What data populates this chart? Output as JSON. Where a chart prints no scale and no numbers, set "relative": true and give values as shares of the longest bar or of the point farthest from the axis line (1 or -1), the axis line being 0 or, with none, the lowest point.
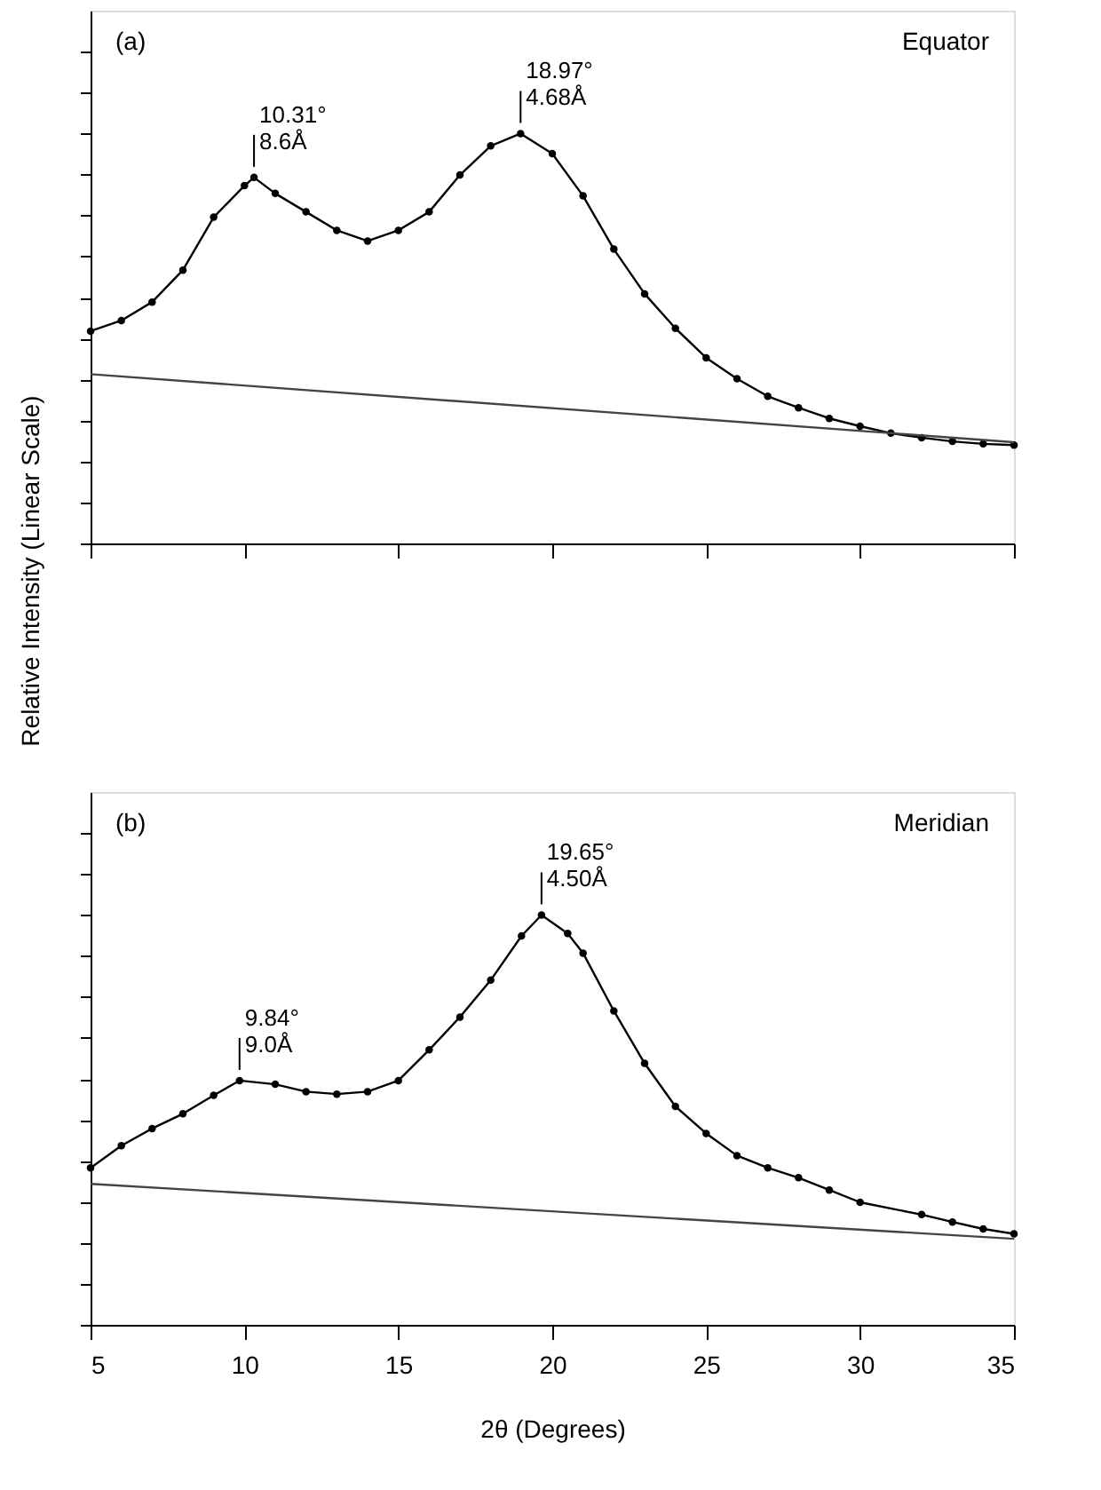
{
  "chart_data": [
    {
      "type": "line",
      "relative": true,
      "ylabel": "Relative Intensity (Linear Scale)",
      "xlim": [
        5,
        35
      ],
      "xticks": [
        5,
        10,
        15,
        20,
        25,
        30,
        35
      ],
      "tick_labels": false,
      "grid": false,
      "annotations": [
        "(a)",
        "Equator",
        {
          "text": "10.31°\n8.6Å",
          "x": 10.31,
          "y": 0.893
        },
        {
          "text": "18.97°\n4.68Å",
          "x": 18.97,
          "y": 1
        }
      ],
      "series": [
        {
          "marker": "circle",
          "color": "#000000",
          "x": [
            5,
            6,
            7,
            8,
            9,
            10,
            10.31,
            11,
            12,
            13,
            14,
            15,
            16,
            17,
            18,
            18.97,
            20,
            21,
            22,
            23,
            24,
            25,
            26,
            27,
            28,
            29,
            30,
            31,
            32,
            33,
            34,
            35
          ],
          "values": [
            0.518,
            0.544,
            0.589,
            0.667,
            0.796,
            0.873,
            0.893,
            0.854,
            0.809,
            0.764,
            0.738,
            0.764,
            0.809,
            0.899,
            0.97,
            1,
            0.951,
            0.848,
            0.718,
            0.609,
            0.525,
            0.453,
            0.402,
            0.359,
            0.331,
            0.305,
            0.286,
            0.269,
            0.258,
            0.249,
            0.243,
            0.24
          ]
        },
        {
          "marker": "none",
          "color": "#444444",
          "x": [
            5,
            35
          ],
          "values": [
            0.413,
            0.247
          ]
        }
      ]
    },
    {
      "type": "line",
      "relative": true,
      "xlabel": "2θ (Degrees)",
      "xlim": [
        5,
        35
      ],
      "xticks": [
        5,
        10,
        15,
        20,
        25,
        30,
        35
      ],
      "tick_labels": "x",
      "grid": false,
      "annotations": [
        "(b)",
        "Meridian",
        {
          "text": "9.84°\n9.0Å",
          "x": 9.84,
          "y": 0.596
        },
        {
          "text": "19.65°\n4.50Å",
          "x": 19.65,
          "y": 1
        }
      ],
      "series": [
        {
          "marker": "circle",
          "color": "#000000",
          "x": [
            5,
            6,
            7,
            8,
            9,
            9.84,
            11,
            12,
            13,
            14,
            15,
            16,
            17,
            18,
            19,
            19.65,
            20.5,
            21,
            22,
            23,
            24,
            25,
            26,
            27,
            28,
            29,
            30,
            32,
            33,
            34,
            35
          ],
          "values": [
            0.383,
            0.437,
            0.479,
            0.515,
            0.56,
            0.596,
            0.587,
            0.569,
            0.563,
            0.569,
            0.596,
            0.671,
            0.751,
            0.841,
            0.949,
            1,
            0.955,
            0.907,
            0.766,
            0.638,
            0.533,
            0.467,
            0.413,
            0.383,
            0.359,
            0.329,
            0.299,
            0.269,
            0.251,
            0.234,
            0.222
          ]
        },
        {
          "marker": "none",
          "color": "#444444",
          "x": [
            5,
            35
          ],
          "values": [
            0.344,
            0.21
          ]
        }
      ]
    }
  ]
}
